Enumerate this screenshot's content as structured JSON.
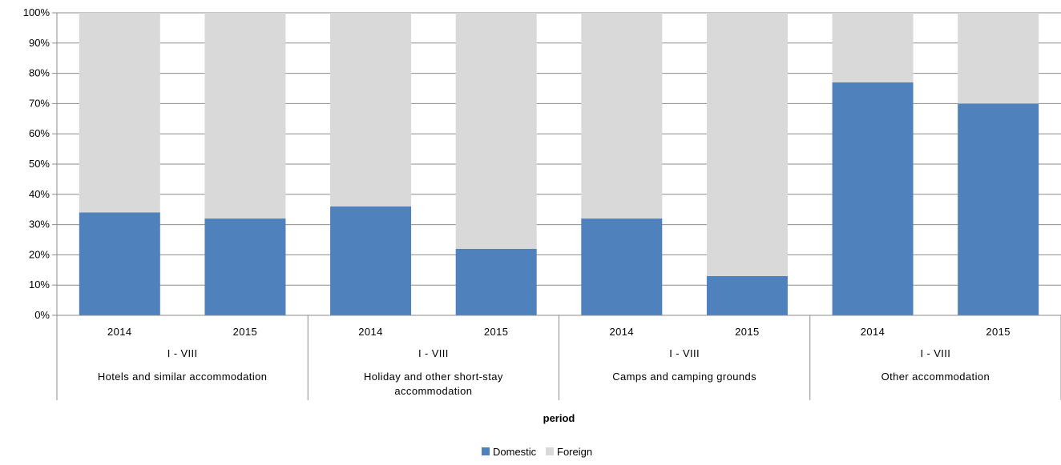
{
  "chart_data": {
    "type": "bar",
    "stacked": true,
    "percent_stacked": true,
    "categories": [
      {
        "year": "2014",
        "period": "I - VIII",
        "group": "Hotels  and similar  accommodation"
      },
      {
        "year": "2015",
        "period": "I - VIII",
        "group": "Hotels  and similar  accommodation"
      },
      {
        "year": "2014",
        "period": "I - VIII",
        "group": "Holiday and other short-stay accommodation"
      },
      {
        "year": "2015",
        "period": "I - VIII",
        "group": "Holiday and other short-stay accommodation"
      },
      {
        "year": "2014",
        "period": "I - VIII",
        "group": "Camps and camping grounds"
      },
      {
        "year": "2015",
        "period": "I - VIII",
        "group": "Camps and camping grounds"
      },
      {
        "year": "2014",
        "period": "I - VIII",
        "group": "Other accommodation"
      },
      {
        "year": "2015",
        "period": "I - VIII",
        "group": "Other accommodation"
      }
    ],
    "groups": [
      {
        "label_lines": [
          "Hotels  and similar  accommodation"
        ]
      },
      {
        "label_lines": [
          "Holiday and other short-stay",
          "accommodation"
        ]
      },
      {
        "label_lines": [
          "Camps and camping grounds"
        ]
      },
      {
        "label_lines": [
          "Other accommodation"
        ]
      }
    ],
    "series": [
      {
        "name": "Domestic",
        "color": "#4F81BD",
        "values": [
          34,
          32,
          36,
          22,
          32,
          13,
          77,
          70
        ]
      },
      {
        "name": "Foreign",
        "color": "#D9D9D9",
        "values": [
          66,
          68,
          64,
          78,
          68,
          87,
          23,
          30
        ]
      }
    ],
    "yticks": [
      "0%",
      "10%",
      "20%",
      "30%",
      "40%",
      "50%",
      "60%",
      "70%",
      "80%",
      "90%",
      "100%"
    ],
    "ylim": [
      0,
      100
    ],
    "xlabel": "period",
    "grid": true,
    "legend_position": "bottom"
  }
}
